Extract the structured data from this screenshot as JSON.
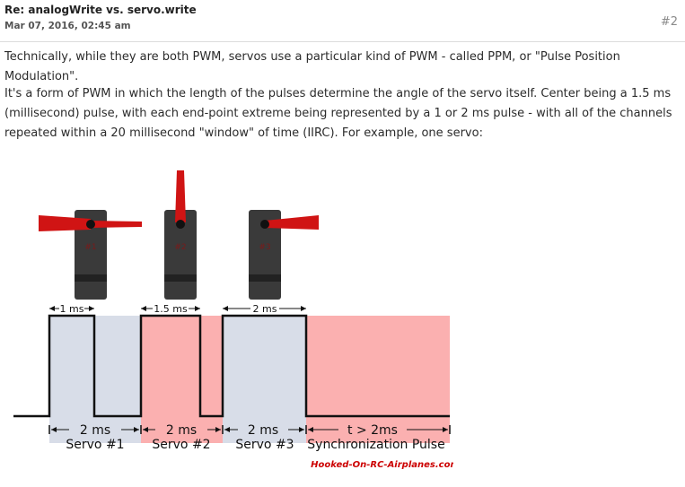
{
  "post": {
    "title": "Re: analogWrite vs. servo.write",
    "date": "Mar 07, 2016, 02:45 am",
    "number": "#2",
    "paragraph1": "Technically, while they are both PWM, servos use a particular kind of PWM - called PPM, or \"Pulse Position Modulation\".",
    "paragraph2_line1": "It's a form of PWM in which the length of the pulses determine the angle of the servo itself. Center being a 1.5 ms",
    "paragraph2_line2": "(millisecond) pulse, with each end-point extreme being represented by a 1 or 2 ms pulse - with all of the channels",
    "paragraph2_line3": "repeated within a 20 millisecond \"window\" of time (IIRC). For example, one servo:"
  },
  "figure": {
    "servo_labels": [
      "#1",
      "#2",
      "#3"
    ],
    "pulse_labels": [
      "1 ms",
      "1.5 ms",
      "2 ms"
    ],
    "bottom_ms": [
      "2 ms",
      "2 ms",
      "2 ms"
    ],
    "sync_time": "t > 2ms",
    "servo_names": [
      "Servo #1",
      "Servo #2",
      "Servo #3"
    ],
    "sync_label": "Synchronization Pulse",
    "watermark": "Hooked-On-RC-Airplanes.com",
    "colors": {
      "servo_slot": "#d8dde8",
      "sync_band": "#fbb0b0",
      "horn": "#d01414",
      "body": "#3a3a3a",
      "watermark": "#cc0000"
    }
  }
}
